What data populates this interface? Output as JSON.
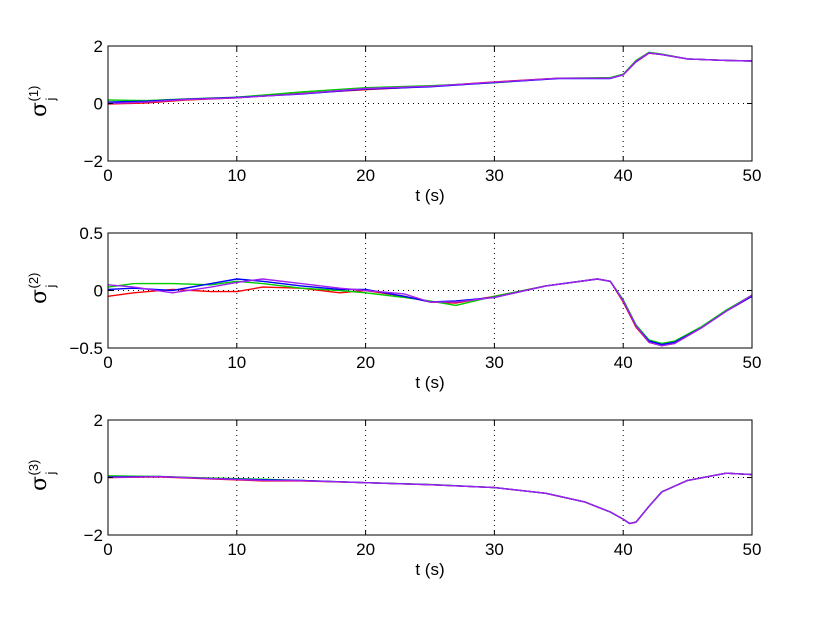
{
  "chart_data": [
    {
      "type": "line",
      "xlabel": "t (s)",
      "ylabel": {
        "base": "σ",
        "sub": "j",
        "sup": "(1)"
      },
      "xlim": [
        0,
        50
      ],
      "ylim": [
        -2,
        2
      ],
      "xticks": [
        0,
        10,
        20,
        30,
        40,
        50
      ],
      "xtick_labels": [
        "0",
        "10",
        "20",
        "30",
        "40",
        "50"
      ],
      "yticks": [
        -2,
        0,
        2
      ],
      "ytick_labels": [
        "−2",
        "0",
        "2"
      ],
      "grid": "dotted",
      "series": [
        {
          "color": "#ff0000",
          "x": [
            0,
            3,
            6,
            10,
            15,
            20,
            25,
            30,
            35,
            39,
            40,
            41,
            42,
            43,
            45,
            48,
            50
          ],
          "y": [
            -0.02,
            0.02,
            0.12,
            0.2,
            0.35,
            0.48,
            0.6,
            0.75,
            0.88,
            0.88,
            1.0,
            1.45,
            1.75,
            1.7,
            1.55,
            1.5,
            1.48
          ]
        },
        {
          "color": "#00cc00",
          "x": [
            0,
            3,
            6,
            10,
            15,
            20,
            25,
            30,
            35,
            39,
            40,
            41,
            42,
            43,
            45,
            48,
            50
          ],
          "y": [
            0.12,
            0.1,
            0.16,
            0.22,
            0.4,
            0.55,
            0.62,
            0.72,
            0.88,
            0.9,
            1.02,
            1.5,
            1.78,
            1.72,
            1.55,
            1.5,
            1.48
          ]
        },
        {
          "color": "#0000ff",
          "x": [
            0,
            3,
            6,
            10,
            15,
            20,
            25,
            30,
            35,
            39,
            40,
            41,
            42,
            43,
            45,
            48,
            50
          ],
          "y": [
            0.05,
            0.08,
            0.15,
            0.21,
            0.33,
            0.5,
            0.58,
            0.73,
            0.87,
            0.87,
            1.0,
            1.46,
            1.76,
            1.7,
            1.55,
            1.5,
            1.48
          ]
        },
        {
          "color": "#a020f0",
          "x": [
            0,
            3,
            6,
            10,
            15,
            20,
            25,
            30,
            35,
            39,
            40,
            41,
            42,
            43,
            45,
            48,
            50
          ],
          "y": [
            0.0,
            0.05,
            0.14,
            0.2,
            0.34,
            0.52,
            0.6,
            0.74,
            0.88,
            0.88,
            1.0,
            1.47,
            1.76,
            1.7,
            1.55,
            1.5,
            1.48
          ]
        }
      ]
    },
    {
      "type": "line",
      "xlabel": "t (s)",
      "ylabel": {
        "base": "σ",
        "sub": "j",
        "sup": "(2)"
      },
      "xlim": [
        0,
        50
      ],
      "ylim": [
        -0.5,
        0.5
      ],
      "xticks": [
        0,
        10,
        20,
        30,
        40,
        50
      ],
      "xtick_labels": [
        "0",
        "10",
        "20",
        "30",
        "40",
        "50"
      ],
      "yticks": [
        -0.5,
        0,
        0.5
      ],
      "ytick_labels": [
        "−0.5",
        "0",
        "0.5"
      ],
      "grid": "dotted",
      "series": [
        {
          "color": "#ff0000",
          "x": [
            0,
            2,
            5,
            8,
            10,
            12,
            15,
            18,
            20,
            23,
            25,
            27,
            30,
            34,
            38,
            39,
            40,
            41,
            42,
            43,
            44,
            46,
            48,
            50
          ],
          "y": [
            -0.05,
            -0.02,
            0.01,
            -0.01,
            -0.01,
            0.03,
            0.02,
            -0.02,
            0.0,
            -0.05,
            -0.1,
            -0.11,
            -0.05,
            0.04,
            0.1,
            0.08,
            -0.1,
            -0.32,
            -0.45,
            -0.48,
            -0.46,
            -0.33,
            -0.18,
            -0.05
          ]
        },
        {
          "color": "#00cc00",
          "x": [
            0,
            2,
            5,
            8,
            10,
            12,
            15,
            18,
            20,
            23,
            25,
            27,
            30,
            34,
            38,
            39,
            40,
            41,
            42,
            43,
            44,
            46,
            48,
            50
          ],
          "y": [
            0.03,
            0.06,
            0.06,
            0.05,
            0.08,
            0.06,
            0.02,
            0.0,
            -0.02,
            -0.06,
            -0.09,
            -0.13,
            -0.05,
            0.04,
            0.1,
            0.08,
            -0.08,
            -0.3,
            -0.43,
            -0.46,
            -0.44,
            -0.32,
            -0.17,
            -0.04
          ]
        },
        {
          "color": "#0000ff",
          "x": [
            0,
            2,
            5,
            8,
            10,
            12,
            15,
            18,
            20,
            23,
            25,
            27,
            30,
            34,
            38,
            39,
            40,
            41,
            42,
            43,
            44,
            46,
            48,
            50
          ],
          "y": [
            0.01,
            0.02,
            0.0,
            0.06,
            0.1,
            0.08,
            0.04,
            0.01,
            0.01,
            -0.05,
            -0.1,
            -0.09,
            -0.06,
            0.04,
            0.1,
            0.08,
            -0.09,
            -0.31,
            -0.44,
            -0.47,
            -0.45,
            -0.33,
            -0.18,
            -0.05
          ]
        },
        {
          "color": "#a020f0",
          "x": [
            0,
            2,
            5,
            8,
            10,
            12,
            15,
            18,
            20,
            23,
            25,
            27,
            30,
            34,
            38,
            39,
            40,
            41,
            42,
            43,
            44,
            46,
            48,
            50
          ],
          "y": [
            0.05,
            0.03,
            -0.02,
            0.03,
            0.07,
            0.1,
            0.06,
            0.02,
            0.0,
            -0.03,
            -0.1,
            -0.1,
            -0.06,
            0.04,
            0.1,
            0.08,
            -0.09,
            -0.31,
            -0.45,
            -0.48,
            -0.46,
            -0.33,
            -0.18,
            -0.04
          ]
        }
      ]
    },
    {
      "type": "line",
      "xlabel": "t (s)",
      "ylabel": {
        "base": "σ",
        "sub": "j",
        "sup": "(3)"
      },
      "xlim": [
        0,
        50
      ],
      "ylim": [
        -2,
        2
      ],
      "xticks": [
        0,
        10,
        20,
        30,
        40,
        50
      ],
      "xtick_labels": [
        "0",
        "10",
        "20",
        "30",
        "40",
        "50"
      ],
      "yticks": [
        -2,
        0,
        2
      ],
      "ytick_labels": [
        "−2",
        "0",
        "2"
      ],
      "grid": "dotted",
      "series": [
        {
          "color": "#ff0000",
          "x": [
            0,
            4,
            8,
            12,
            15,
            20,
            25,
            30,
            34,
            37,
            39,
            40,
            40.5,
            41,
            42,
            43,
            45,
            48,
            50
          ],
          "y": [
            0.0,
            0.02,
            -0.05,
            -0.12,
            -0.12,
            -0.18,
            -0.25,
            -0.35,
            -0.55,
            -0.85,
            -1.2,
            -1.45,
            -1.6,
            -1.55,
            -1.0,
            -0.5,
            -0.1,
            0.15,
            0.1
          ]
        },
        {
          "color": "#00cc00",
          "x": [
            0,
            4,
            8,
            12,
            15,
            20,
            25,
            30,
            34,
            37,
            39,
            40,
            40.5,
            41,
            42,
            43,
            45,
            48,
            50
          ],
          "y": [
            0.06,
            0.04,
            -0.02,
            -0.06,
            -0.1,
            -0.18,
            -0.24,
            -0.35,
            -0.55,
            -0.85,
            -1.2,
            -1.45,
            -1.6,
            -1.55,
            -1.0,
            -0.5,
            -0.1,
            0.15,
            0.1
          ]
        },
        {
          "color": "#0000ff",
          "x": [
            0,
            4,
            8,
            12,
            15,
            20,
            25,
            30,
            34,
            37,
            39,
            40,
            40.5,
            41,
            42,
            43,
            45,
            48,
            50
          ],
          "y": [
            0.02,
            0.03,
            -0.04,
            -0.08,
            -0.1,
            -0.18,
            -0.25,
            -0.35,
            -0.55,
            -0.85,
            -1.2,
            -1.45,
            -1.6,
            -1.55,
            -1.0,
            -0.5,
            -0.1,
            0.15,
            0.1
          ]
        },
        {
          "color": "#a020f0",
          "x": [
            0,
            4,
            8,
            12,
            15,
            20,
            25,
            30,
            34,
            37,
            39,
            40,
            40.5,
            41,
            42,
            43,
            45,
            48,
            50
          ],
          "y": [
            0.0,
            0.03,
            -0.04,
            -0.1,
            -0.11,
            -0.18,
            -0.25,
            -0.35,
            -0.55,
            -0.85,
            -1.2,
            -1.45,
            -1.6,
            -1.55,
            -1.0,
            -0.5,
            -0.1,
            0.15,
            0.1
          ]
        }
      ]
    }
  ]
}
